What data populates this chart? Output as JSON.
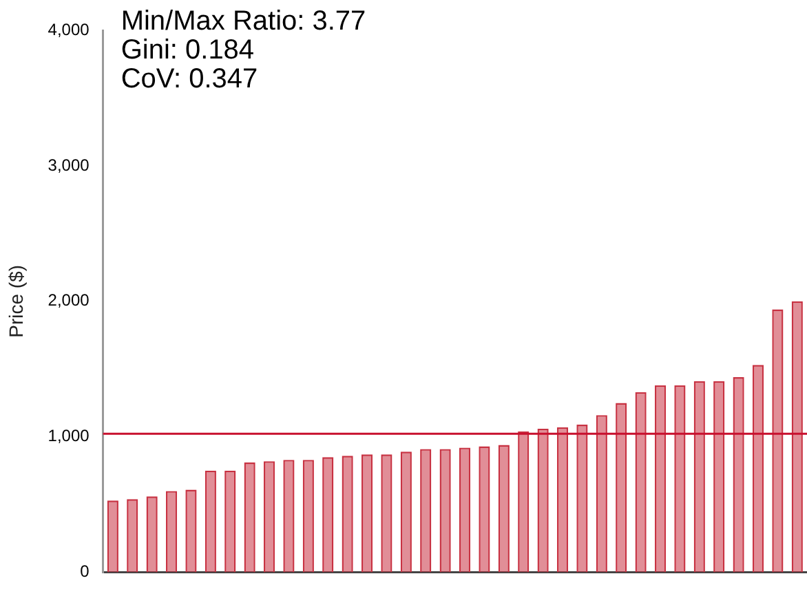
{
  "chart_data": {
    "type": "bar",
    "ylabel": "Price ($)",
    "annotations": [
      "Min/Max Ratio: 3.77",
      "Gini: 0.184",
      "CoV: 0.347"
    ],
    "categories": [
      null,
      null,
      null,
      null,
      null,
      null,
      null,
      null,
      null,
      null,
      null,
      null,
      null,
      null,
      null,
      null,
      null,
      null,
      null,
      null,
      null,
      null,
      null,
      null,
      null,
      null,
      null,
      null,
      null,
      null,
      null,
      null,
      null,
      null,
      null,
      null
    ],
    "values": [
      530,
      540,
      560,
      600,
      610,
      750,
      750,
      810,
      820,
      830,
      830,
      850,
      860,
      870,
      870,
      890,
      910,
      910,
      920,
      930,
      940,
      1040,
      1060,
      1070,
      1090,
      1160,
      1250,
      1330,
      1380,
      1380,
      1410,
      1410,
      1440,
      1530,
      1940,
      2000
    ],
    "color": "#c83242",
    "ylim": [
      0,
      4000
    ],
    "yticks": [
      {
        "value": 0,
        "label": "0"
      },
      {
        "value": 1000,
        "label": "1,000"
      },
      {
        "value": 2000,
        "label": "2,000"
      },
      {
        "value": 3000,
        "label": "3,000"
      },
      {
        "value": 4000,
        "label": "4,000"
      }
    ],
    "ref_lines": [
      {
        "axis": "y",
        "value": 1022,
        "label": null,
        "color": "#c8102e"
      }
    ],
    "tick_labels": "y",
    "grid": false,
    "legend": false
  }
}
